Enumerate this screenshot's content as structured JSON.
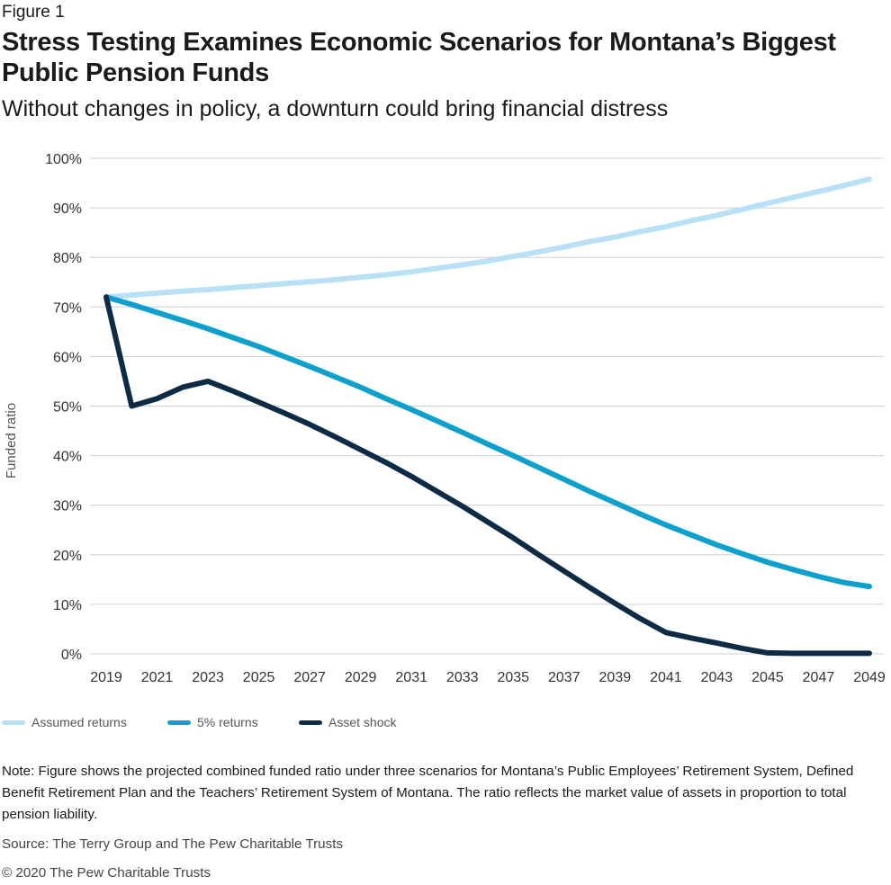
{
  "header": {
    "figure_label": "Figure 1",
    "title": "Stress Testing Examines Economic Scenarios for Montana’s Biggest Public Pension Funds",
    "subtitle": "Without changes in policy, a downturn could bring financial distress"
  },
  "chart_data": {
    "type": "line",
    "ylabel": "Funded ratio",
    "xlabel": "",
    "ylim": [
      0,
      100
    ],
    "yticks": [
      "0%",
      "10%",
      "20%",
      "30%",
      "40%",
      "50%",
      "60%",
      "70%",
      "80%",
      "90%",
      "100%"
    ],
    "xlim": [
      2019,
      2049
    ],
    "xticks": [
      "2019",
      "2021",
      "2023",
      "2025",
      "2027",
      "2029",
      "2031",
      "2033",
      "2035",
      "2037",
      "2039",
      "2041",
      "2043",
      "2045",
      "2047",
      "2049"
    ],
    "grid": true,
    "legend_position": "bottom-left",
    "x": [
      2019,
      2020,
      2021,
      2022,
      2023,
      2024,
      2025,
      2026,
      2027,
      2028,
      2029,
      2030,
      2031,
      2032,
      2033,
      2034,
      2035,
      2036,
      2037,
      2038,
      2039,
      2040,
      2041,
      2042,
      2043,
      2044,
      2045,
      2046,
      2047,
      2048,
      2049
    ],
    "series": [
      {
        "name": "Assumed returns",
        "color": "#b8e1f5",
        "values": [
          72.0,
          72.4,
          72.8,
          73.2,
          73.5,
          73.9,
          74.3,
          74.7,
          75.1,
          75.5,
          76.0,
          76.5,
          77.1,
          77.8,
          78.5,
          79.3,
          80.2,
          81.1,
          82.1,
          83.2,
          84.1,
          85.2,
          86.2,
          87.4,
          88.5,
          89.7,
          90.9,
          92.1,
          93.3,
          94.5,
          95.8
        ]
      },
      {
        "name": "5% returns",
        "color": "#0ea0cc",
        "values": [
          72.0,
          70.5,
          68.9,
          67.3,
          65.6,
          63.8,
          62.0,
          60.0,
          58.0,
          55.9,
          53.8,
          51.5,
          49.3,
          47.0,
          44.7,
          42.3,
          40.0,
          37.6,
          35.2,
          32.8,
          30.5,
          28.2,
          26.0,
          24.0,
          22.0,
          20.2,
          18.5,
          17.0,
          15.6,
          14.4,
          13.6
        ]
      },
      {
        "name": "Asset shock",
        "color": "#0d2b45",
        "values": [
          72.0,
          50.0,
          51.5,
          53.8,
          55.0,
          53.0,
          50.8,
          48.6,
          46.3,
          43.8,
          41.2,
          38.6,
          35.8,
          32.8,
          29.8,
          26.6,
          23.4,
          20.0,
          16.7,
          13.4,
          10.2,
          7.1,
          4.3,
          3.2,
          2.2,
          1.1,
          0.2,
          0.1,
          0.1,
          0.1,
          0.1
        ]
      }
    ]
  },
  "footer": {
    "note": "Note: Figure shows the projected combined funded ratio under three scenarios for Montana’s Public Employees’ Retirement System, Defined Benefit Retirement Plan and the Teachers’ Retirement System of Montana. The ratio reflects the market value of assets in proportion to total pension liability.",
    "source": "Source: The Terry Group and The Pew Charitable Trusts",
    "copyright": "© 2020 The Pew Charitable Trusts"
  }
}
